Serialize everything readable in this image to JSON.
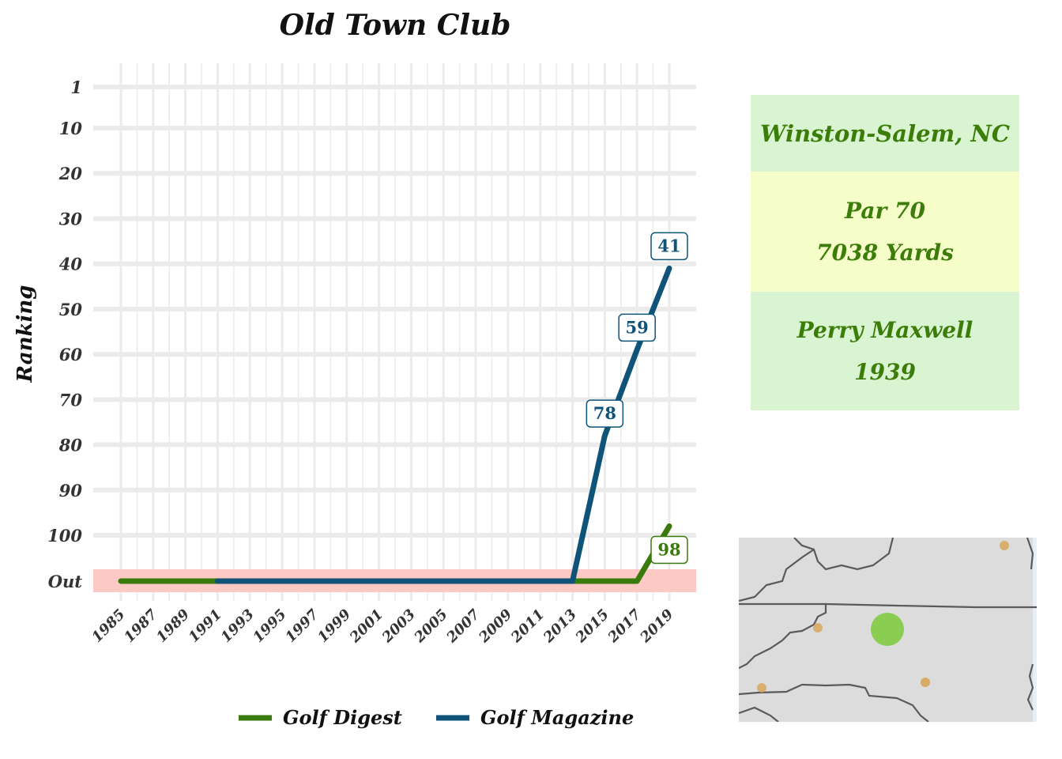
{
  "chart_data": {
    "type": "line",
    "title": "Old Town Club",
    "xlabel": "",
    "ylabel": "Ranking",
    "x_ticks": [
      "1985",
      "1987",
      "1989",
      "1991",
      "1993",
      "1995",
      "1997",
      "1999",
      "2001",
      "2003",
      "2005",
      "2007",
      "2009",
      "2011",
      "2013",
      "2015",
      "2017",
      "2019"
    ],
    "y_ticks": [
      "1",
      "10",
      "20",
      "30",
      "40",
      "50",
      "60",
      "70",
      "80",
      "90",
      "100",
      "Out"
    ],
    "y_scale": "ranking (1 at top, increasing downward; 'Out' band below 100)",
    "xlim": [
      1985,
      2019
    ],
    "ylim": [
      1,
      110
    ],
    "out_band_color": "#fdc9c5",
    "series": [
      {
        "name": "Golf Digest",
        "color": "#3a7a0c",
        "points": [
          [
            1985,
            "Out"
          ],
          [
            1991,
            "Out"
          ],
          [
            2017,
            "Out"
          ],
          [
            2019,
            98
          ]
        ],
        "labels": [
          {
            "x": 2019,
            "y": 98,
            "text": "98"
          }
        ]
      },
      {
        "name": "Golf Magazine",
        "color": "#0f5478",
        "points": [
          [
            1991,
            "Out"
          ],
          [
            2013,
            "Out"
          ],
          [
            2015,
            78
          ],
          [
            2017,
            59
          ],
          [
            2019,
            41
          ]
        ],
        "labels": [
          {
            "x": 2015,
            "y": 78,
            "text": "78"
          },
          {
            "x": 2017,
            "y": 59,
            "text": "59"
          },
          {
            "x": 2019,
            "y": 41,
            "text": "41"
          }
        ]
      }
    ],
    "grid": true,
    "legend_position": "bottom"
  },
  "info": {
    "location": "Winston-Salem, NC",
    "par": "Par 70",
    "yards": "7038 Yards",
    "architect": "Perry Maxwell",
    "year": "1939"
  },
  "colors": {
    "info_text": "#3c7d0a",
    "info_box_green": "#d8f4d0",
    "info_box_yellow": "#f5fdc8",
    "map_land": "#dcdcdc",
    "map_border": "#5a5a5a",
    "map_marker": "#d6a24d",
    "map_highlight": "#7cc93a"
  },
  "map": {
    "description_icon": "regional-map",
    "markers": [
      {
        "type": "other-course",
        "size": "small"
      },
      {
        "type": "other-course",
        "size": "small"
      },
      {
        "type": "other-course",
        "size": "small"
      },
      {
        "type": "other-course",
        "size": "small"
      },
      {
        "type": "this-course",
        "size": "large"
      }
    ]
  }
}
